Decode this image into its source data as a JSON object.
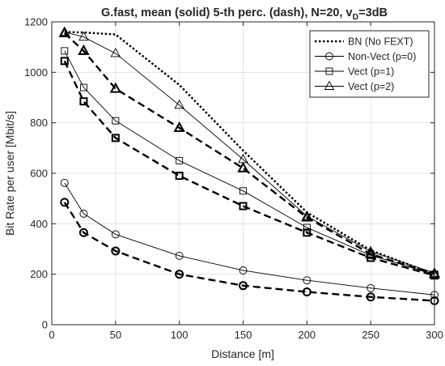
{
  "chart_data": {
    "type": "line",
    "title_parts": [
      "G.fast, mean (solid) 5-th perc. (dash), N=20, v",
      "D",
      "=3dB"
    ],
    "xlabel": "Distance [m]",
    "ylabel": "Bit Rate per user [Mbit/s]",
    "xlim": [
      0,
      300
    ],
    "ylim": [
      0,
      1200
    ],
    "xticks": [
      0,
      50,
      100,
      150,
      200,
      250,
      300
    ],
    "yticks": [
      0,
      200,
      400,
      600,
      800,
      1000,
      1200
    ],
    "grid": true,
    "legend_position": "top-right",
    "legend": [
      {
        "label": "BN (No FEXT)",
        "marker": "none",
        "style": "dotted"
      },
      {
        "label": "Non-Vect (p=0)",
        "marker": "circle",
        "style": "solid"
      },
      {
        "label": "Vect (p=1)",
        "marker": "square",
        "style": "solid"
      },
      {
        "label": "Vect (p=2)",
        "marker": "triangle",
        "style": "solid"
      }
    ],
    "series": [
      {
        "name": "BN (No FEXT)",
        "marker": "none",
        "style": "dotted",
        "x": [
          10,
          25,
          50,
          100,
          150,
          200,
          250,
          300
        ],
        "y": [
          1160,
          1158,
          1150,
          950,
          690,
          445,
          295,
          200
        ]
      },
      {
        "marker": "triangle",
        "style": "solid",
        "x": [
          10,
          25,
          50,
          100,
          150,
          200,
          250,
          300
        ],
        "y": [
          1160,
          1140,
          1075,
          870,
          655,
          430,
          290,
          205
        ]
      },
      {
        "marker": "triangle",
        "style": "dashed",
        "x": [
          10,
          25,
          50,
          100,
          150,
          200,
          250,
          300
        ],
        "y": [
          1155,
          1085,
          935,
          780,
          620,
          425,
          280,
          200
        ]
      },
      {
        "marker": "square",
        "style": "solid",
        "x": [
          10,
          25,
          50,
          100,
          150,
          200,
          250,
          300
        ],
        "y": [
          1085,
          940,
          808,
          650,
          530,
          385,
          275,
          200
        ]
      },
      {
        "marker": "square",
        "style": "dashed",
        "x": [
          10,
          25,
          50,
          100,
          150,
          200,
          250,
          300
        ],
        "y": [
          1045,
          885,
          740,
          590,
          470,
          365,
          265,
          195
        ]
      },
      {
        "marker": "circle",
        "style": "solid",
        "x": [
          10,
          25,
          50,
          100,
          150,
          200,
          250,
          300
        ],
        "y": [
          562,
          440,
          358,
          273,
          215,
          176,
          145,
          118
        ]
      },
      {
        "marker": "circle",
        "style": "dashed",
        "x": [
          10,
          25,
          50,
          100,
          150,
          200,
          250,
          300
        ],
        "y": [
          485,
          365,
          292,
          200,
          155,
          130,
          110,
          95
        ]
      }
    ]
  }
}
